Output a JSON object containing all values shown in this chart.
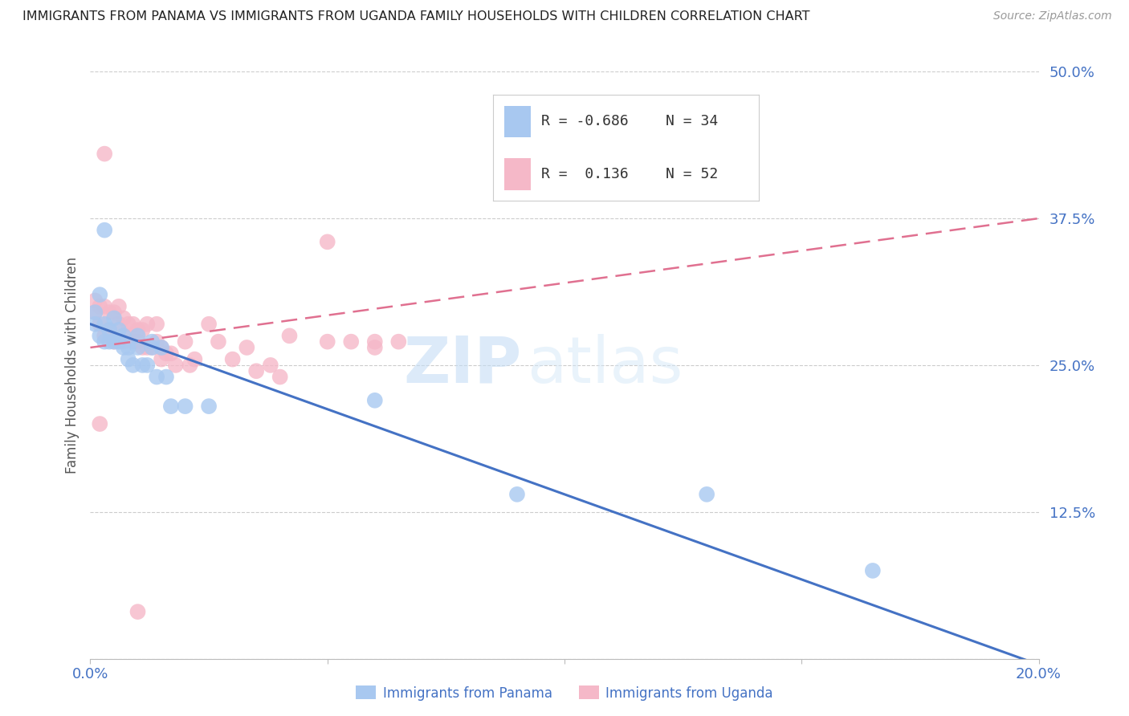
{
  "title": "IMMIGRANTS FROM PANAMA VS IMMIGRANTS FROM UGANDA FAMILY HOUSEHOLDS WITH CHILDREN CORRELATION CHART",
  "source": "Source: ZipAtlas.com",
  "ylabel": "Family Households with Children",
  "xlabel_panama": "Immigrants from Panama",
  "xlabel_uganda": "Immigrants from Uganda",
  "legend_panama": {
    "R": "-0.686",
    "N": "34"
  },
  "legend_uganda": {
    "R": "0.136",
    "N": "52"
  },
  "color_panama": "#a8c8f0",
  "color_uganda": "#f5b8c8",
  "line_color_panama": "#4472c4",
  "line_color_uganda": "#e07090",
  "axis_label_color": "#4472c4",
  "title_color": "#222222",
  "watermark_zip": "ZIP",
  "watermark_atlas": "atlas",
  "xlim": [
    0.0,
    0.2
  ],
  "ylim": [
    0.0,
    0.5
  ],
  "panama_x": [
    0.001,
    0.001,
    0.002,
    0.002,
    0.003,
    0.003,
    0.003,
    0.004,
    0.004,
    0.005,
    0.005,
    0.006,
    0.006,
    0.007,
    0.007,
    0.008,
    0.008,
    0.009,
    0.01,
    0.01,
    0.011,
    0.012,
    0.013,
    0.013,
    0.014,
    0.015,
    0.016,
    0.017,
    0.02,
    0.025,
    0.06,
    0.09,
    0.13,
    0.165
  ],
  "panama_y": [
    0.285,
    0.295,
    0.275,
    0.31,
    0.27,
    0.285,
    0.365,
    0.27,
    0.28,
    0.27,
    0.29,
    0.27,
    0.28,
    0.265,
    0.275,
    0.255,
    0.265,
    0.25,
    0.265,
    0.275,
    0.25,
    0.25,
    0.265,
    0.27,
    0.24,
    0.265,
    0.24,
    0.215,
    0.215,
    0.215,
    0.22,
    0.14,
    0.14,
    0.075
  ],
  "uganda_x": [
    0.001,
    0.001,
    0.002,
    0.002,
    0.003,
    0.003,
    0.003,
    0.004,
    0.004,
    0.005,
    0.005,
    0.006,
    0.006,
    0.007,
    0.007,
    0.008,
    0.008,
    0.009,
    0.009,
    0.01,
    0.01,
    0.011,
    0.011,
    0.012,
    0.012,
    0.013,
    0.014,
    0.014,
    0.015,
    0.015,
    0.016,
    0.017,
    0.018,
    0.02,
    0.021,
    0.022,
    0.025,
    0.027,
    0.03,
    0.033,
    0.035,
    0.038,
    0.04,
    0.042,
    0.05,
    0.055,
    0.06,
    0.065,
    0.002,
    0.01,
    0.05,
    0.06
  ],
  "uganda_y": [
    0.295,
    0.305,
    0.285,
    0.3,
    0.275,
    0.3,
    0.43,
    0.28,
    0.295,
    0.27,
    0.295,
    0.285,
    0.3,
    0.27,
    0.29,
    0.275,
    0.285,
    0.27,
    0.285,
    0.27,
    0.28,
    0.265,
    0.28,
    0.265,
    0.285,
    0.265,
    0.27,
    0.285,
    0.255,
    0.265,
    0.26,
    0.26,
    0.25,
    0.27,
    0.25,
    0.255,
    0.285,
    0.27,
    0.255,
    0.265,
    0.245,
    0.25,
    0.24,
    0.275,
    0.27,
    0.27,
    0.265,
    0.27,
    0.2,
    0.04,
    0.355,
    0.27
  ],
  "panama_line_x": [
    0.0,
    0.2
  ],
  "panama_line_y": [
    0.285,
    -0.005
  ],
  "uganda_line_x": [
    0.0,
    0.2
  ],
  "uganda_line_y": [
    0.265,
    0.375
  ]
}
